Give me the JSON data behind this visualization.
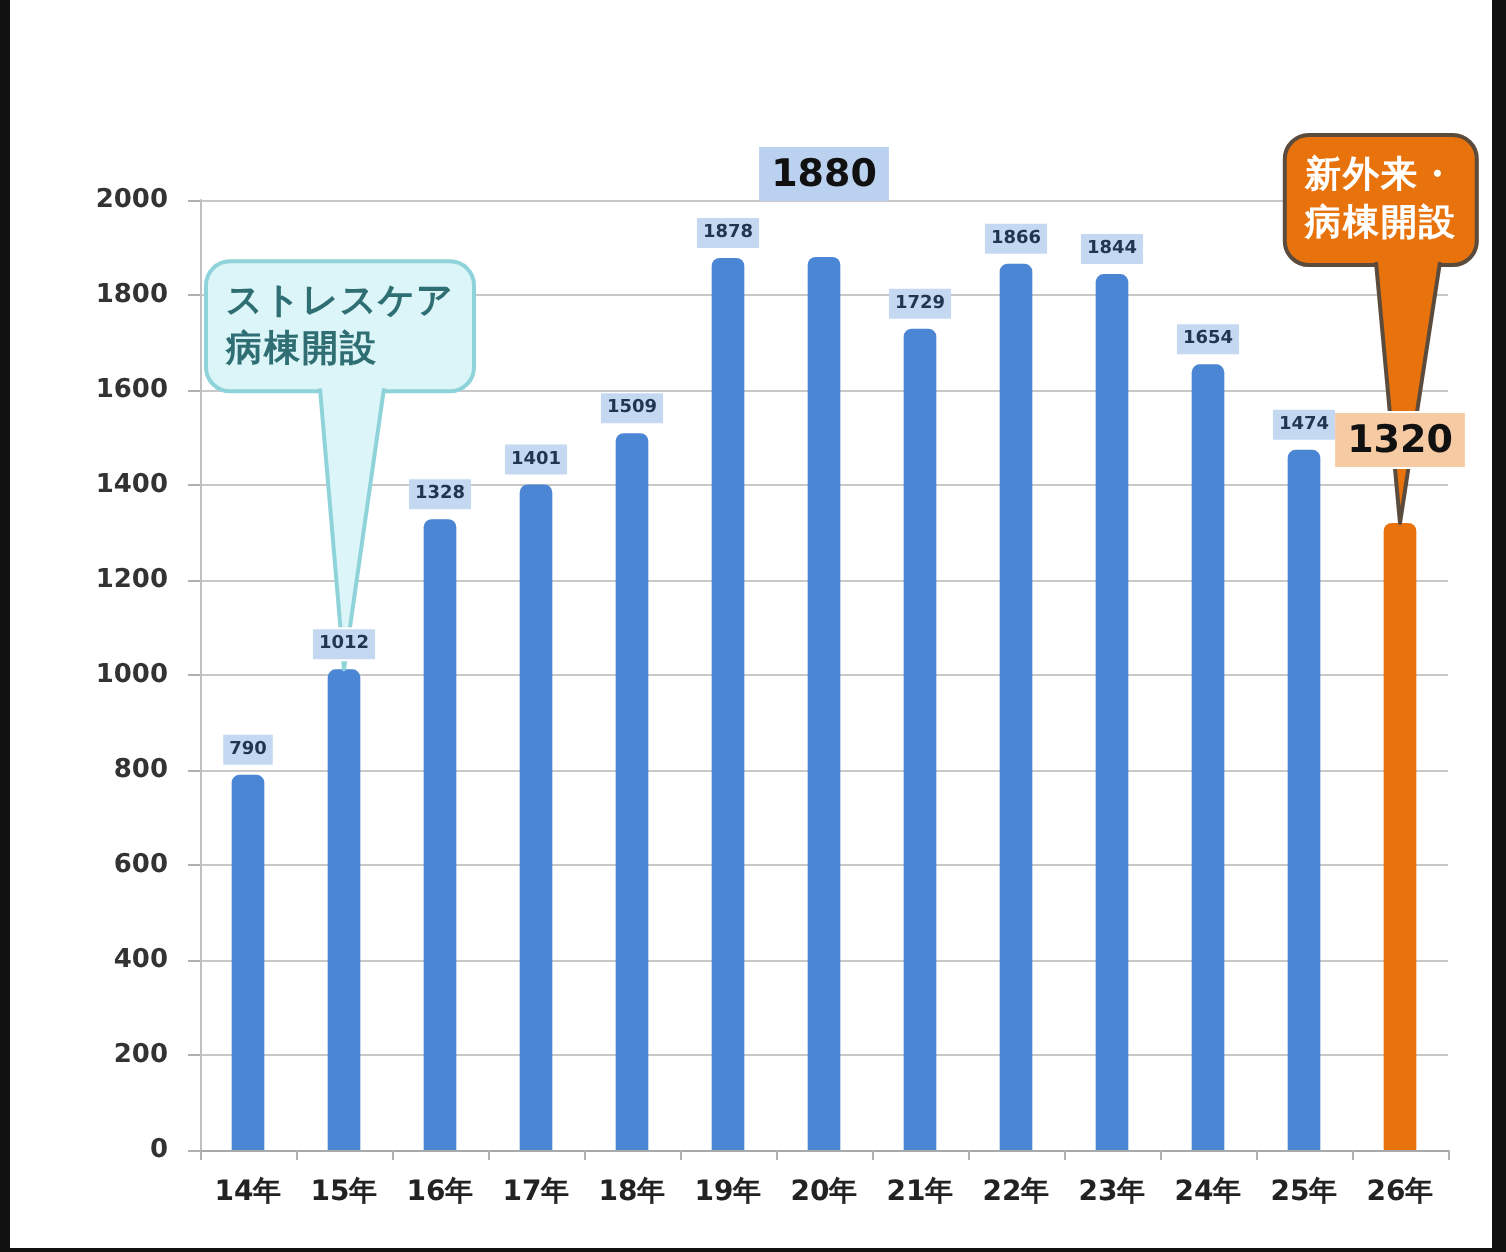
{
  "chart_data": {
    "type": "bar",
    "categories": [
      "14年",
      "15年",
      "16年",
      "17年",
      "18年",
      "19年",
      "20年",
      "21年",
      "22年",
      "23年",
      "24年",
      "25年",
      "26年"
    ],
    "values": [
      790,
      1012,
      1328,
      1401,
      1509,
      1878,
      1880,
      1729,
      1866,
      1844,
      1654,
      1474,
      1320
    ],
    "colors": [
      "#4a86d4",
      "#4a86d4",
      "#4a86d4",
      "#4a86d4",
      "#4a86d4",
      "#4a86d4",
      "#4a86d4",
      "#4a86d4",
      "#4a86d4",
      "#4a86d4",
      "#4a86d4",
      "#4a86d4",
      "#e8730c"
    ],
    "ylim": [
      0,
      2000
    ],
    "yticks": [
      0,
      200,
      400,
      600,
      800,
      1000,
      1200,
      1400,
      1600,
      1800,
      2000
    ],
    "grid": "y",
    "data_labels": true,
    "annotations": [
      {
        "text": "ストレスケア病棟開設",
        "x": "15年",
        "y": 1012
      },
      {
        "text": "新外来・病棟開設",
        "x": "26年",
        "y": 1320
      }
    ]
  }
}
